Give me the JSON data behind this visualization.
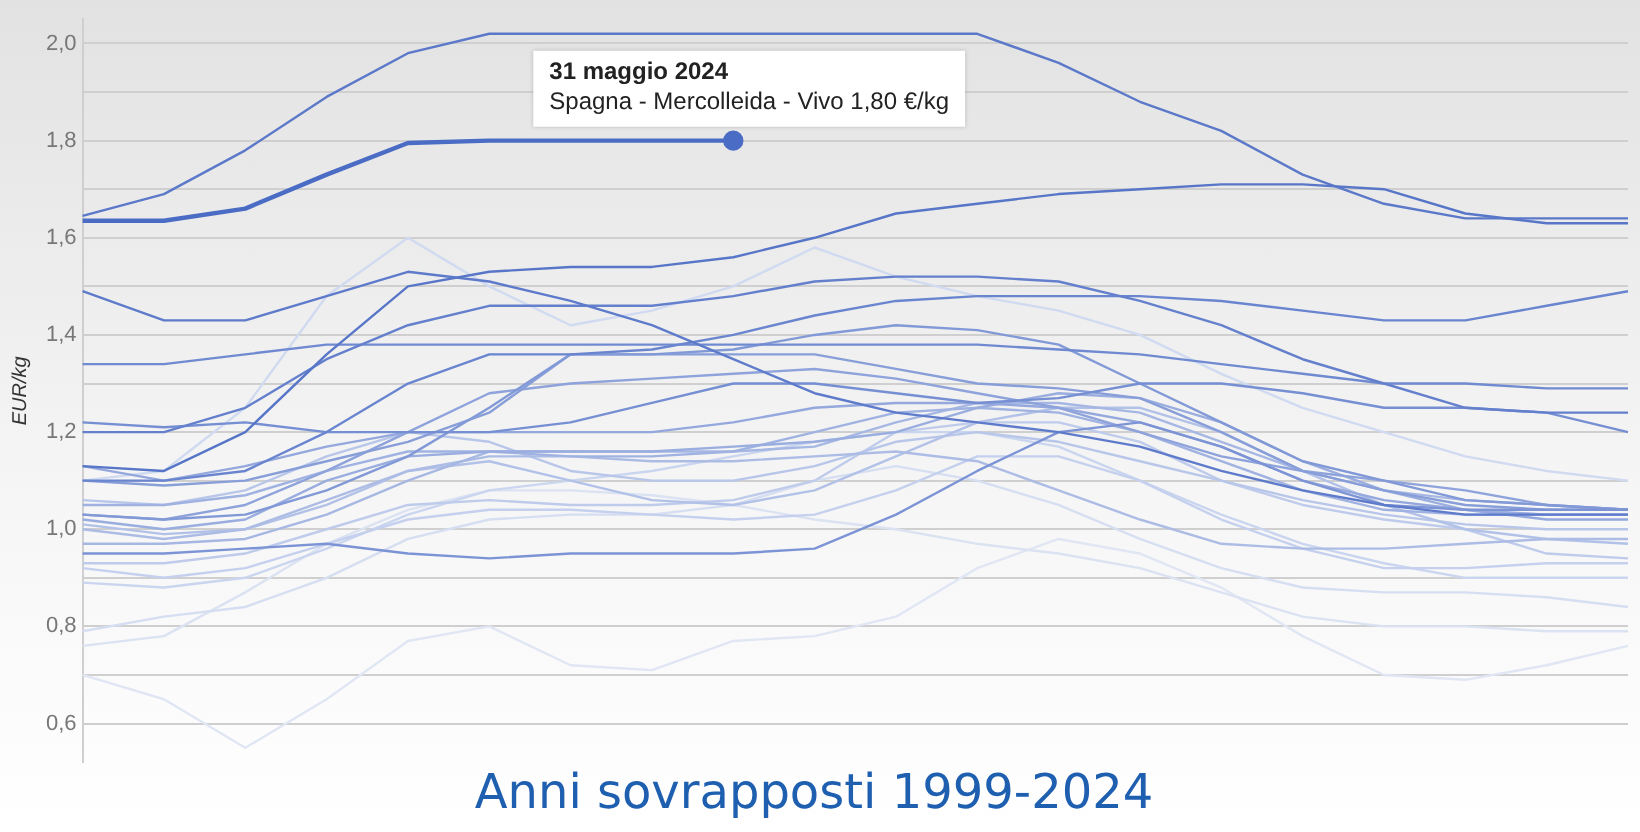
{
  "chart_data": {
    "type": "line",
    "title": "Anni sovrapposti 1999-2024",
    "ylabel": "EUR/kg",
    "tick_labels": "y",
    "grid": "y",
    "marker": "none",
    "line_style": "solid",
    "legend": false,
    "annotations": [
      "31 maggio 2024",
      "Spagna - Mercolleida - Vivo 1,80 €/kg"
    ],
    "categories": [
      null,
      null,
      null,
      null,
      null,
      null,
      null,
      null,
      null,
      null,
      null,
      null,
      null,
      null,
      null,
      null,
      null,
      null,
      null,
      null
    ],
    "ylim": [
      0.52,
      2.05
    ],
    "yticks": [
      {
        "value": 0.6,
        "label": "0,6"
      },
      {
        "value": 0.7,
        "label": null
      },
      {
        "value": 0.8,
        "label": "0,8"
      },
      {
        "value": 0.9,
        "label": null
      },
      {
        "value": 1.0,
        "label": "1,0"
      },
      {
        "value": 1.1,
        "label": null
      },
      {
        "value": 1.2,
        "label": "1,2"
      },
      {
        "value": 1.3,
        "label": null
      },
      {
        "value": 1.4,
        "label": "1,4"
      },
      {
        "value": 1.5,
        "label": null
      },
      {
        "value": 1.6,
        "label": "1,6"
      },
      {
        "value": 1.7,
        "label": null
      },
      {
        "value": 1.8,
        "label": "1,8"
      },
      {
        "value": 1.9,
        "label": null
      },
      {
        "value": 2.0,
        "label": "2,0"
      }
    ],
    "series": [
      {
        "color": "#e0e6f3",
        "values": [
          0.7,
          0.65,
          0.55,
          0.65,
          0.77,
          0.8,
          0.72,
          0.71,
          0.77,
          0.78,
          0.82,
          0.92,
          0.98,
          0.95,
          0.88,
          0.78,
          0.7,
          0.69,
          0.72,
          0.76
        ]
      },
      {
        "color": "#dbe2f2",
        "values": [
          0.76,
          0.78,
          0.87,
          0.97,
          1.04,
          1.08,
          1.08,
          1.07,
          1.05,
          1.02,
          1.0,
          0.97,
          0.95,
          0.92,
          0.87,
          0.82,
          0.8,
          0.8,
          0.79,
          0.79
        ]
      },
      {
        "color": "#d6def1",
        "values": [
          0.79,
          0.82,
          0.84,
          0.9,
          0.98,
          1.02,
          1.03,
          1.03,
          1.05,
          1.1,
          1.13,
          1.1,
          1.05,
          0.98,
          0.92,
          0.88,
          0.87,
          0.87,
          0.86,
          0.84
        ]
      },
      {
        "color": "#d0daf0",
        "values": [
          1.1,
          1.12,
          1.25,
          1.48,
          1.6,
          1.5,
          1.42,
          1.45,
          1.5,
          1.58,
          1.52,
          1.48,
          1.45,
          1.4,
          1.32,
          1.25,
          1.2,
          1.15,
          1.12,
          1.1
        ]
      },
      {
        "color": "#cad5ef",
        "values": [
          0.89,
          0.88,
          0.9,
          0.96,
          1.03,
          1.08,
          1.1,
          1.12,
          1.15,
          1.18,
          1.2,
          1.2,
          1.17,
          1.1,
          1.03,
          0.97,
          0.93,
          0.9,
          0.9,
          0.9
        ]
      },
      {
        "color": "#c4d0ed",
        "values": [
          0.92,
          0.9,
          0.92,
          0.97,
          1.02,
          1.04,
          1.04,
          1.03,
          1.02,
          1.03,
          1.08,
          1.15,
          1.15,
          1.1,
          1.02,
          0.96,
          0.92,
          0.92,
          0.93,
          0.93
        ]
      },
      {
        "color": "#becbeb",
        "values": [
          0.93,
          0.93,
          0.95,
          1.0,
          1.05,
          1.06,
          1.05,
          1.05,
          1.06,
          1.1,
          1.2,
          1.22,
          1.22,
          1.18,
          1.1,
          1.05,
          1.02,
          1.0,
          0.95,
          0.94
        ]
      },
      {
        "color": "#b8c6e9",
        "values": [
          1.06,
          1.05,
          1.08,
          1.15,
          1.2,
          1.18,
          1.12,
          1.1,
          1.1,
          1.13,
          1.18,
          1.2,
          1.18,
          1.14,
          1.1,
          1.06,
          1.03,
          1.01,
          1.0,
          1.0
        ]
      },
      {
        "color": "#b2c1e7",
        "values": [
          1.01,
          0.99,
          1.0,
          1.05,
          1.12,
          1.14,
          1.1,
          1.06,
          1.05,
          1.08,
          1.15,
          1.22,
          1.25,
          1.25,
          1.2,
          1.12,
          1.05,
          1.0,
          0.98,
          0.97
        ]
      },
      {
        "color": "#acbce5",
        "values": [
          1.0,
          0.98,
          1.0,
          1.06,
          1.12,
          1.15,
          1.15,
          1.14,
          1.14,
          1.15,
          1.16,
          1.14,
          1.08,
          1.02,
          0.97,
          0.96,
          0.96,
          0.97,
          0.98,
          0.98
        ]
      },
      {
        "color": "#a6b7e3",
        "values": [
          0.97,
          0.97,
          0.98,
          1.03,
          1.1,
          1.16,
          1.16,
          1.16,
          1.16,
          1.17,
          1.22,
          1.26,
          1.26,
          1.24,
          1.18,
          1.12,
          1.08,
          1.06,
          1.05,
          1.04
        ]
      },
      {
        "color": "#a0b2e1",
        "values": [
          1.05,
          1.05,
          1.07,
          1.12,
          1.16,
          1.16,
          1.15,
          1.15,
          1.16,
          1.2,
          1.24,
          1.25,
          1.24,
          1.2,
          1.14,
          1.08,
          1.04,
          1.03,
          1.03,
          1.03
        ]
      },
      {
        "color": "#9aaddf",
        "values": [
          1.02,
          1.0,
          1.02,
          1.1,
          1.15,
          1.16,
          1.16,
          1.16,
          1.17,
          1.18,
          1.2,
          1.25,
          1.28,
          1.27,
          1.22,
          1.14,
          1.08,
          1.04,
          1.03,
          1.03
        ]
      },
      {
        "color": "#94a8dd",
        "values": [
          1.13,
          1.1,
          1.13,
          1.17,
          1.2,
          1.2,
          1.2,
          1.2,
          1.22,
          1.25,
          1.26,
          1.26,
          1.25,
          1.22,
          1.17,
          1.1,
          1.06,
          1.04,
          1.02,
          1.02
        ]
      },
      {
        "color": "#8ea3db",
        "values": [
          1.03,
          1.02,
          1.05,
          1.12,
          1.2,
          1.28,
          1.3,
          1.31,
          1.32,
          1.33,
          1.31,
          1.28,
          1.25,
          1.2,
          1.15,
          1.12,
          1.1,
          1.08,
          1.05,
          1.04
        ]
      },
      {
        "color": "#889ed9",
        "values": [
          1.1,
          1.09,
          1.1,
          1.14,
          1.18,
          1.24,
          1.36,
          1.36,
          1.36,
          1.36,
          1.33,
          1.3,
          1.29,
          1.27,
          1.2,
          1.12,
          1.08,
          1.05,
          1.04,
          1.04
        ]
      },
      {
        "color": "#8299d7",
        "values": [
          1.03,
          1.02,
          1.03,
          1.08,
          1.15,
          1.25,
          1.36,
          1.36,
          1.37,
          1.4,
          1.42,
          1.41,
          1.38,
          1.3,
          1.22,
          1.14,
          1.1,
          1.06,
          1.05,
          1.04
        ]
      },
      {
        "color": "#7c94d5",
        "values": [
          0.95,
          0.95,
          0.96,
          0.97,
          0.95,
          0.94,
          0.95,
          0.95,
          0.95,
          0.96,
          1.03,
          1.12,
          1.2,
          1.22,
          1.17,
          1.1,
          1.05,
          1.04,
          1.04,
          1.04
        ]
      },
      {
        "color": "#768fd3",
        "values": [
          1.22,
          1.21,
          1.22,
          1.2,
          1.2,
          1.2,
          1.22,
          1.26,
          1.3,
          1.3,
          1.28,
          1.26,
          1.27,
          1.3,
          1.3,
          1.28,
          1.25,
          1.25,
          1.24,
          1.2
        ]
      },
      {
        "color": "#708ad1",
        "values": [
          1.34,
          1.34,
          1.36,
          1.38,
          1.38,
          1.38,
          1.38,
          1.38,
          1.38,
          1.38,
          1.38,
          1.38,
          1.37,
          1.36,
          1.34,
          1.32,
          1.3,
          1.3,
          1.29,
          1.29
        ]
      },
      {
        "color": "#6a85cf",
        "values": [
          1.1,
          1.1,
          1.12,
          1.2,
          1.3,
          1.36,
          1.36,
          1.37,
          1.4,
          1.44,
          1.47,
          1.48,
          1.48,
          1.48,
          1.47,
          1.45,
          1.43,
          1.43,
          1.46,
          1.49
        ]
      },
      {
        "color": "#6480cd",
        "values": [
          1.2,
          1.2,
          1.25,
          1.35,
          1.42,
          1.46,
          1.46,
          1.46,
          1.48,
          1.51,
          1.52,
          1.52,
          1.51,
          1.47,
          1.42,
          1.35,
          1.3,
          1.25,
          1.24,
          1.24
        ]
      },
      {
        "color": "#5e7bcb",
        "values": [
          1.49,
          1.43,
          1.43,
          1.48,
          1.53,
          1.51,
          1.47,
          1.42,
          1.35,
          1.28,
          1.24,
          1.22,
          1.2,
          1.17,
          1.12,
          1.08,
          1.05,
          1.03,
          1.03,
          1.03
        ]
      },
      {
        "color": "#5b78c9",
        "values": [
          1.645,
          1.69,
          1.78,
          1.89,
          1.98,
          2.02,
          2.02,
          2.02,
          2.02,
          2.02,
          2.02,
          2.02,
          1.96,
          1.88,
          1.82,
          1.73,
          1.67,
          1.64,
          1.64,
          1.64
        ]
      },
      {
        "color": "#5876c8",
        "values": [
          1.13,
          1.12,
          1.2,
          1.36,
          1.5,
          1.53,
          1.54,
          1.54,
          1.56,
          1.6,
          1.65,
          1.67,
          1.69,
          1.7,
          1.71,
          1.71,
          1.7,
          1.65,
          1.63,
          1.63
        ]
      },
      {
        "color": "#4a6cc4",
        "values": [
          1.635,
          1.635,
          1.66,
          1.73,
          1.795,
          1.8,
          1.8,
          1.8,
          1.8,
          null,
          null,
          null,
          null,
          null,
          null,
          null,
          null,
          null,
          null,
          null
        ]
      }
    ]
  }
}
